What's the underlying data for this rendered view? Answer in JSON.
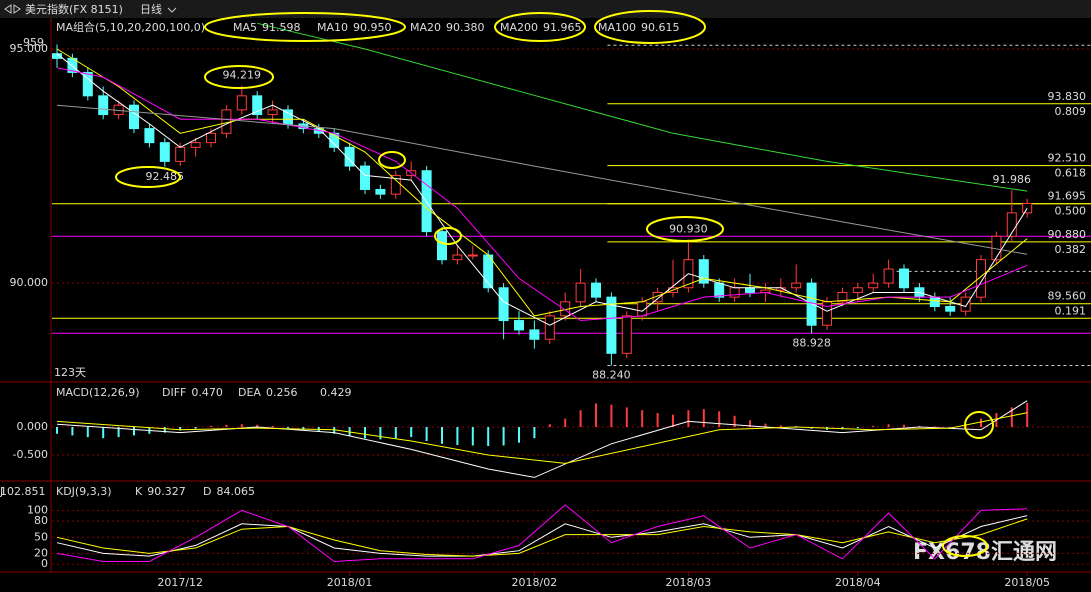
{
  "header": {
    "symbol": "美元指数(FX 8151)",
    "period": "日线"
  },
  "watermark": "FX678汇通网",
  "chart_data": [
    {
      "type": "candlestick",
      "title": "MA组合(5,10,20,200,100,0)",
      "ylim": [
        87.93,
        95.62
      ],
      "yticks": [
        {
          "value": 95,
          "label": "95.000"
        },
        {
          "value": 90,
          "label": "90.000"
        }
      ],
      "grid": true,
      "categories": [
        null,
        null,
        null,
        null,
        null,
        null,
        null,
        null,
        "2017/12",
        null,
        null,
        null,
        null,
        null,
        null,
        null,
        null,
        null,
        null,
        "2018/01",
        null,
        null,
        null,
        null,
        null,
        null,
        null,
        null,
        null,
        null,
        null,
        "2018/02",
        null,
        null,
        null,
        null,
        null,
        null,
        null,
        null,
        null,
        "2018/03",
        null,
        null,
        null,
        null,
        null,
        null,
        null,
        null,
        null,
        null,
        "2018/04",
        null,
        null,
        null,
        null,
        null,
        null,
        null,
        null,
        null,
        null,
        "2018/05"
      ],
      "ohlc": [
        [
          94.9,
          95.1,
          94.6,
          94.8
        ],
        [
          94.8,
          94.9,
          94.4,
          94.5
        ],
        [
          94.5,
          94.6,
          93.9,
          94.0
        ],
        [
          94.0,
          94.2,
          93.5,
          93.6
        ],
        [
          93.6,
          93.9,
          93.5,
          93.8
        ],
        [
          93.8,
          93.9,
          93.2,
          93.3
        ],
        [
          93.3,
          93.4,
          92.9,
          93.0
        ],
        [
          93.0,
          93.1,
          92.485,
          92.6
        ],
        [
          92.6,
          93.0,
          92.5,
          92.9
        ],
        [
          92.9,
          93.1,
          92.7,
          93.0
        ],
        [
          93.0,
          93.3,
          92.9,
          93.2
        ],
        [
          93.2,
          93.8,
          93.1,
          93.7
        ],
        [
          93.7,
          94.219,
          93.6,
          94.0
        ],
        [
          94.0,
          94.1,
          93.5,
          93.6
        ],
        [
          93.6,
          93.9,
          93.4,
          93.7
        ],
        [
          93.7,
          93.8,
          93.3,
          93.4
        ],
        [
          93.4,
          93.5,
          93.2,
          93.3
        ],
        [
          93.3,
          93.4,
          93.1,
          93.2
        ],
        [
          93.2,
          93.3,
          92.8,
          92.9
        ],
        [
          92.9,
          93.0,
          92.4,
          92.5
        ],
        [
          92.5,
          92.6,
          91.9,
          92.0
        ],
        [
          92.0,
          92.1,
          91.8,
          91.9
        ],
        [
          91.9,
          92.4,
          91.8,
          92.3
        ],
        [
          92.3,
          92.6,
          92.2,
          92.4
        ],
        [
          92.4,
          92.5,
          91.0,
          91.1
        ],
        [
          91.1,
          91.2,
          90.4,
          90.5
        ],
        [
          90.5,
          90.8,
          90.4,
          90.6
        ],
        [
          90.6,
          90.8,
          90.5,
          90.6
        ],
        [
          90.6,
          90.7,
          89.8,
          89.9
        ],
        [
          89.9,
          90.0,
          88.8,
          89.2
        ],
        [
          89.2,
          89.4,
          88.9,
          89.0
        ],
        [
          89.0,
          89.2,
          88.6,
          88.8
        ],
        [
          88.8,
          89.4,
          88.7,
          89.3
        ],
        [
          89.3,
          89.8,
          89.2,
          89.6
        ],
        [
          89.6,
          90.3,
          89.5,
          90.0
        ],
        [
          90.0,
          90.1,
          89.6,
          89.7
        ],
        [
          89.7,
          89.8,
          88.24,
          88.5
        ],
        [
          88.5,
          89.4,
          88.4,
          89.3
        ],
        [
          89.3,
          89.7,
          89.2,
          89.6
        ],
        [
          89.6,
          89.9,
          89.4,
          89.8
        ],
        [
          89.8,
          90.5,
          89.7,
          89.9
        ],
        [
          89.9,
          90.93,
          89.8,
          90.5
        ],
        [
          90.5,
          90.6,
          89.9,
          90.0
        ],
        [
          90.0,
          90.1,
          89.6,
          89.7
        ],
        [
          89.7,
          90.1,
          89.6,
          89.9
        ],
        [
          89.9,
          90.2,
          89.7,
          89.8
        ],
        [
          89.8,
          90.0,
          89.6,
          89.85
        ],
        [
          89.85,
          90.1,
          89.7,
          89.9
        ],
        [
          89.9,
          90.4,
          89.8,
          90.0
        ],
        [
          90.0,
          90.1,
          88.928,
          89.1
        ],
        [
          89.1,
          89.7,
          89.0,
          89.6
        ],
        [
          89.6,
          89.9,
          89.5,
          89.8
        ],
        [
          89.8,
          90.0,
          89.6,
          89.9
        ],
        [
          89.9,
          90.2,
          89.8,
          90.0
        ],
        [
          90.0,
          90.5,
          89.9,
          90.3
        ],
        [
          90.3,
          90.4,
          89.8,
          89.9
        ],
        [
          89.9,
          90.0,
          89.6,
          89.7
        ],
        [
          89.7,
          89.8,
          89.4,
          89.5
        ],
        [
          89.5,
          89.7,
          89.3,
          89.4
        ],
        [
          89.4,
          89.8,
          89.3,
          89.7
        ],
        [
          89.7,
          90.6,
          89.6,
          90.5
        ],
        [
          90.5,
          91.1,
          90.4,
          91.0
        ],
        [
          91.0,
          91.986,
          90.9,
          91.5
        ],
        [
          91.5,
          91.8,
          91.4,
          91.7
        ]
      ],
      "up_color": "#ff3c3c",
      "down_color": "#54fcfc",
      "series": [
        {
          "name": "MA5",
          "value_label": "91.598",
          "color": "#ffffff",
          "x": [
            0,
            3,
            6,
            8,
            11,
            14,
            17,
            20,
            23,
            26,
            29,
            32,
            35,
            38,
            41,
            44,
            47,
            50,
            53,
            56,
            59,
            63
          ],
          "values": [
            94.9,
            94.1,
            93.4,
            92.9,
            93.4,
            93.8,
            93.3,
            92.3,
            92.2,
            90.8,
            89.6,
            89.1,
            89.6,
            89.4,
            90.2,
            89.9,
            89.9,
            89.4,
            89.8,
            89.8,
            89.5,
            91.598
          ]
        },
        {
          "name": "MA10",
          "value_label": "90.950",
          "color": "#ffff00",
          "x": [
            0,
            4,
            8,
            12,
            16,
            20,
            24,
            28,
            31,
            34,
            38,
            42,
            46,
            50,
            54,
            58,
            63
          ],
          "values": [
            95.0,
            94.2,
            93.2,
            93.5,
            93.5,
            92.8,
            91.6,
            90.6,
            89.3,
            89.5,
            89.6,
            90.1,
            89.9,
            89.6,
            89.7,
            89.6,
            90.95
          ]
        },
        {
          "name": "MA20",
          "value_label": "90.380",
          "color": "#ff00ff",
          "x": [
            0,
            3,
            8,
            13,
            18,
            22,
            26,
            30,
            34,
            38,
            42,
            46,
            50,
            54,
            58,
            63
          ],
          "values": [
            94.6,
            94.4,
            93.5,
            93.5,
            93.2,
            92.6,
            91.6,
            90.1,
            89.2,
            89.3,
            89.7,
            89.8,
            89.5,
            89.7,
            89.7,
            90.38
          ]
        },
        {
          "name": "MA200",
          "value_label": "91.965",
          "color": "#33dd33",
          "x": [
            13,
            20,
            30,
            40,
            50,
            63
          ],
          "values": [
            95.55,
            95.0,
            94.1,
            93.2,
            92.6,
            91.965
          ]
        },
        {
          "name": "MA100",
          "value_label": "90.615",
          "color": "#999999",
          "x": [
            0,
            18,
            31,
            41,
            52,
            63
          ],
          "values": [
            93.8,
            93.3,
            92.5,
            91.9,
            91.25,
            90.615
          ]
        }
      ],
      "levels": [
        {
          "value": 93.83,
          "label": "93.830",
          "ratio": "0.809"
        },
        {
          "value": 92.51,
          "label": "92.510",
          "ratio": "0.618"
        },
        {
          "value": 91.695,
          "label": "91.695",
          "ratio": "0.500"
        },
        {
          "value": 90.88,
          "label": "90.880",
          "ratio": "0.382"
        },
        {
          "value": 89.56,
          "label": "89.560",
          "ratio": "0.191"
        }
      ],
      "level_from": 36,
      "ref_lines": [
        {
          "value": 91.695,
          "color": "#ffff00",
          "from": 0,
          "dash": false
        },
        {
          "value": 89.25,
          "color": "#ffff00",
          "from": 0,
          "dash": false
        },
        {
          "value": 91.0,
          "color": "#ff00ff",
          "from": 0,
          "dash": false
        },
        {
          "value": 88.928,
          "color": "#ff00ff",
          "from": 0,
          "dash": false
        },
        {
          "value": 95.08,
          "color": "#ffffff",
          "from": 36,
          "dash": true
        },
        {
          "value": 90.25,
          "color": "#ffffff",
          "from": 54,
          "dash": true
        },
        {
          "value": 88.24,
          "color": "#ffffff",
          "from": 36,
          "dash": true
        }
      ],
      "annotations": [
        {
          "index": 12,
          "value": 94.219,
          "label": "94.219",
          "color": "#ff4040",
          "side": "above"
        },
        {
          "index": 7,
          "value": 92.485,
          "label": "92.485",
          "color": "#54fcfc",
          "side": "below"
        },
        {
          "index": 41,
          "value": 90.93,
          "label": "90.930",
          "color": "#ff4040",
          "side": "above"
        },
        {
          "index": 49,
          "value": 88.928,
          "label": "88.928",
          "color": "#54fcfc",
          "side": "below"
        },
        {
          "index": 36,
          "value": 88.24,
          "label": "88.240",
          "color": "#54fcfc",
          "side": "below"
        },
        {
          "index": 62,
          "value": 91.986,
          "label": "91.986",
          "color": "#ff4040",
          "side": "above"
        }
      ],
      "corner_top": "959",
      "corner_bottom": "123天"
    },
    {
      "type": "macd",
      "title": "MACD(12,26,9)",
      "ylim": [
        -0.91,
        0.75
      ],
      "yticks": [
        {
          "value": 0,
          "label": "0.000"
        },
        {
          "value": -0.5,
          "label": "-0.500"
        }
      ],
      "grid": true,
      "histogram": [
        -0.12,
        -0.15,
        -0.18,
        -0.2,
        -0.18,
        -0.15,
        -0.12,
        -0.1,
        -0.06,
        -0.03,
        0.02,
        0.04,
        0.05,
        0.04,
        0.02,
        -0.02,
        -0.05,
        -0.08,
        -0.12,
        -0.16,
        -0.2,
        -0.22,
        -0.2,
        -0.18,
        -0.25,
        -0.3,
        -0.32,
        -0.33,
        -0.34,
        -0.33,
        -0.28,
        -0.2,
        0.05,
        0.15,
        0.3,
        0.42,
        0.4,
        0.35,
        0.3,
        0.25,
        0.22,
        0.3,
        0.32,
        0.28,
        0.2,
        0.12,
        0.06,
        0.03,
        0.02,
        -0.03,
        -0.05,
        -0.04,
        -0.02,
        0.02,
        0.05,
        0.04,
        0.02,
        0.01,
        -0.02,
        0.05,
        0.15,
        0.25,
        0.35,
        0.429
      ],
      "pos_color": "#ff3c3c",
      "neg_color": "#54fcfc",
      "macd_label": "0.429",
      "series": [
        {
          "name": "DIFF",
          "value_label": "0.470",
          "color": "#ffffff",
          "x": [
            0,
            8,
            13,
            18,
            23,
            28,
            31,
            36,
            41,
            46,
            51,
            56,
            60,
            63
          ],
          "values": [
            0.05,
            -0.1,
            0.0,
            -0.1,
            -0.4,
            -0.75,
            -0.9,
            -0.3,
            0.1,
            0.0,
            -0.1,
            0.0,
            -0.05,
            0.47
          ]
        },
        {
          "name": "DEA",
          "value_label": "0.256",
          "color": "#ffff00",
          "x": [
            0,
            8,
            13,
            18,
            23,
            28,
            33,
            38,
            43,
            48,
            53,
            58,
            63
          ],
          "values": [
            0.1,
            -0.05,
            -0.02,
            -0.05,
            -0.25,
            -0.5,
            -0.65,
            -0.35,
            -0.05,
            0.0,
            -0.05,
            -0.02,
            0.256
          ]
        }
      ]
    },
    {
      "type": "kdj",
      "title": "KDJ(9,3,3)",
      "ylim": [
        -14.5,
        149
      ],
      "yticks": [
        100,
        80,
        50,
        20,
        0
      ],
      "grid": true,
      "series": [
        {
          "name": "K",
          "value_label": "90.327",
          "color": "#ffffff",
          "x": [
            0,
            3,
            6,
            9,
            12,
            15,
            18,
            21,
            24,
            27,
            30,
            33,
            36,
            39,
            42,
            45,
            48,
            51,
            54,
            57,
            60,
            63
          ],
          "values": [
            40,
            20,
            15,
            35,
            75,
            70,
            30,
            20,
            15,
            15,
            25,
            75,
            50,
            60,
            75,
            50,
            55,
            30,
            70,
            30,
            70,
            90.327
          ]
        },
        {
          "name": "D",
          "value_label": "84.065",
          "color": "#ffff00",
          "x": [
            0,
            3,
            6,
            9,
            12,
            15,
            18,
            21,
            24,
            27,
            30,
            33,
            36,
            39,
            42,
            45,
            48,
            51,
            54,
            57,
            60,
            63
          ],
          "values": [
            50,
            30,
            20,
            30,
            65,
            70,
            45,
            25,
            18,
            15,
            20,
            55,
            55,
            55,
            70,
            60,
            55,
            40,
            60,
            40,
            55,
            84.065
          ]
        },
        {
          "name": "J",
          "value_label": "102.851",
          "color": "#ff00ff",
          "x": [
            0,
            3,
            6,
            9,
            12,
            15,
            18,
            21,
            24,
            27,
            30,
            33,
            36,
            39,
            42,
            45,
            48,
            51,
            54,
            57,
            60,
            63
          ],
          "values": [
            20,
            5,
            5,
            50,
            100,
            70,
            5,
            10,
            10,
            10,
            35,
            110,
            40,
            70,
            90,
            30,
            55,
            10,
            95,
            10,
            100,
            102.851
          ]
        }
      ]
    }
  ]
}
